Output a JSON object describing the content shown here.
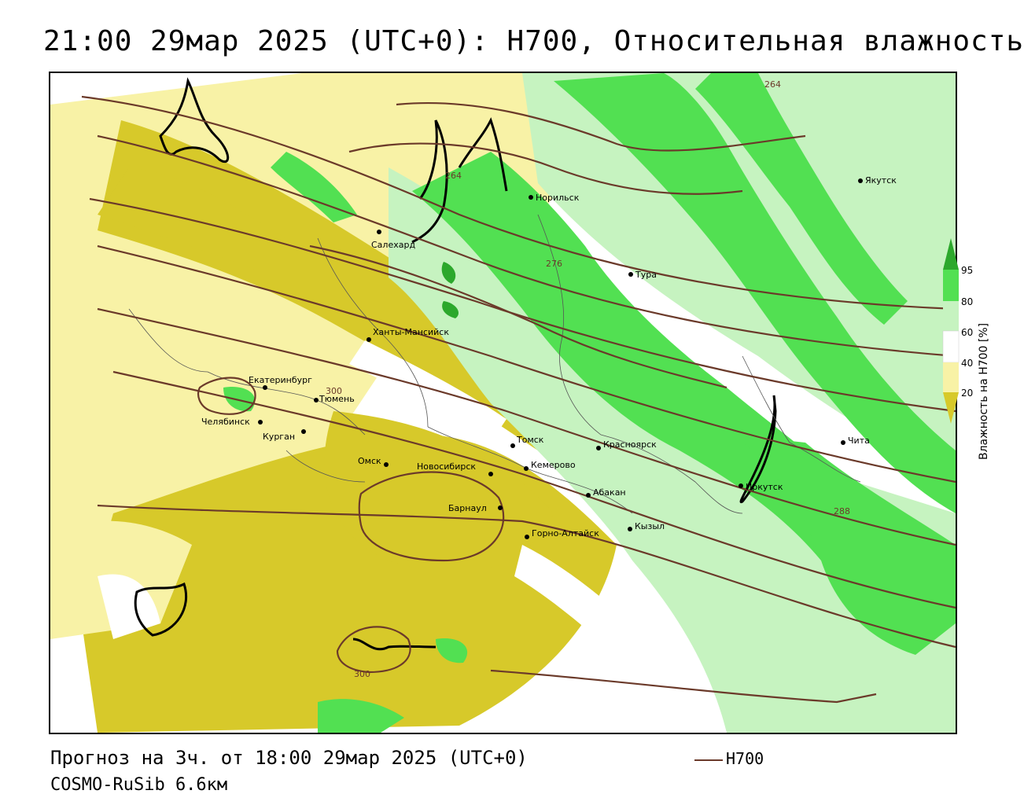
{
  "header": {
    "title": "21:00 29мар 2025 (UTC+0): H700, Относительная влажность"
  },
  "footer": {
    "forecast": "Прогноз на 3ч. от 18:00 29мар 2025 (UTC+0)",
    "model": "COSMO-RuSib 6.6км",
    "legend_line_label": "H700"
  },
  "colorbar": {
    "label": "Влажность на H700 [%]",
    "ticks": [
      "95",
      "80",
      "60",
      "40",
      "20"
    ],
    "colors": {
      "dry": "#d7c92a",
      "light_dry": "#f8f2a6",
      "neutral": "#ffffff",
      "light_wet": "#c6f3c0",
      "wet": "#52e052",
      "very_wet": "#2ca82c"
    }
  },
  "contours": {
    "color": "#6b3a2a",
    "labels": [
      "264",
      "264",
      "276",
      "288",
      "300",
      "300"
    ]
  },
  "cities": [
    {
      "name": "Якутск"
    },
    {
      "name": "Норильск"
    },
    {
      "name": "Салехард"
    },
    {
      "name": "Тура"
    },
    {
      "name": "Ханты-Мансийск"
    },
    {
      "name": "Екатеринбург"
    },
    {
      "name": "Тюмень"
    },
    {
      "name": "Челябинск"
    },
    {
      "name": "Курган"
    },
    {
      "name": "Омск"
    },
    {
      "name": "Новосибирск"
    },
    {
      "name": "Томск"
    },
    {
      "name": "Кемерово"
    },
    {
      "name": "Красноярск"
    },
    {
      "name": "Барнаул"
    },
    {
      "name": "Абакан"
    },
    {
      "name": "Горно-Алтайск"
    },
    {
      "name": "Кызыл"
    },
    {
      "name": "Иркутск"
    },
    {
      "name": "Чита"
    }
  ]
}
